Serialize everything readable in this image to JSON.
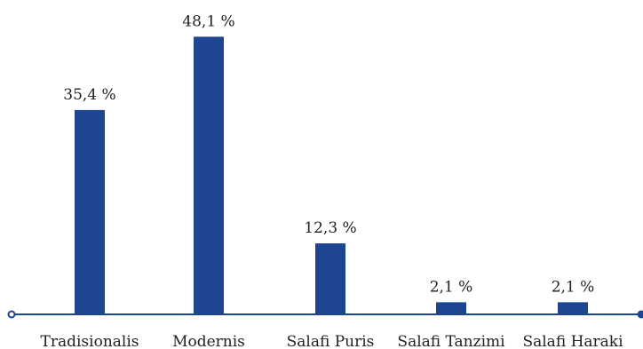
{
  "chart_data": {
    "type": "bar",
    "title": "",
    "xlabel": "",
    "ylabel": "",
    "categories": [
      "Tradisionalis",
      "Modernis",
      "Salafi Puris",
      "Salafi Tanzimi",
      "Salafi Haraki"
    ],
    "values": [
      35.4,
      48.1,
      12.3,
      2.1,
      2.1
    ],
    "value_labels": [
      "35,4 %",
      "48,1 %",
      "12,3 %",
      "2,1 %",
      "2,1 %"
    ],
    "ylim": [
      0,
      50
    ],
    "grid": false,
    "legend": "none",
    "colors": {
      "bar": "#1d4592",
      "axis": "#1d4592",
      "text": "#222222"
    }
  }
}
